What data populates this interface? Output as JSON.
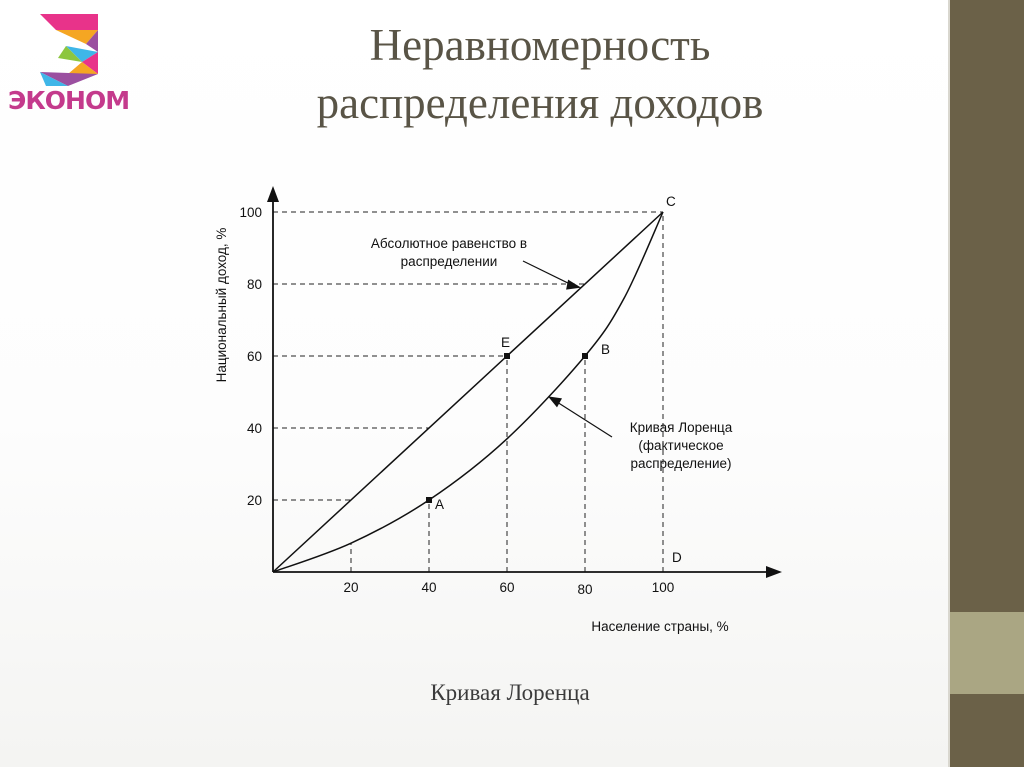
{
  "slide": {
    "title_line1": "Неравномерность",
    "title_line2": "распределения доходов",
    "caption": "Кривая Лоренца"
  },
  "logo": {
    "text": "ЭКОНОМ",
    "icon": "multicolor-letter-e-logo",
    "colors": [
      "#e8338a",
      "#f5a623",
      "#3fb6e8",
      "#8dc63f",
      "#9b4fa0"
    ]
  },
  "colors": {
    "accent_dark": "#6b6148",
    "accent_light": "#aaa683",
    "title": "#595446"
  },
  "chart_data": {
    "type": "line",
    "xlabel": "Население страны, %",
    "ylabel": "Национальный доход, %",
    "xlim": [
      0,
      100
    ],
    "ylim": [
      0,
      100
    ],
    "x_ticks": [
      "20",
      "40",
      "60",
      "80",
      "100"
    ],
    "y_ticks": [
      "20",
      "40",
      "60",
      "80",
      "100"
    ],
    "series": [
      {
        "id": "equality",
        "x": [
          0,
          100
        ],
        "y": [
          0,
          100
        ]
      },
      {
        "id": "lorenz",
        "x": [
          0,
          20,
          40,
          60,
          80,
          90,
          100
        ],
        "y": [
          0,
          8,
          20,
          37,
          60,
          76,
          100
        ]
      }
    ],
    "points": [
      {
        "label": "A",
        "x": 40,
        "y": 20
      },
      {
        "label": "E",
        "x": 60,
        "y": 60
      },
      {
        "label": "B",
        "x": 80,
        "y": 60
      },
      {
        "label": "C",
        "x": 100,
        "y": 100
      },
      {
        "label": "D",
        "x": 100,
        "y": 0
      }
    ],
    "annotations": [
      {
        "id": "equality",
        "lines": [
          "Абсолютное равенство в",
          "распределении"
        ],
        "target_x": 79
      },
      {
        "id": "lorenz",
        "lines": [
          "Кривая Лоренца",
          "(фактическое",
          "распределение)"
        ],
        "target_x": 70
      }
    ]
  }
}
